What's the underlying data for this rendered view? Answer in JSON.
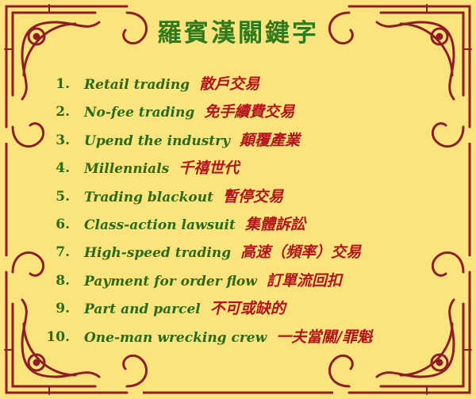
{
  "title": "羅賓漢關鍵字",
  "colors": {
    "background": "#fbe47d",
    "border": "#8f1d24",
    "title_green": "#2f7a1f",
    "term_green": "#2a6a18",
    "chinese_red": "#b3141b"
  },
  "items": [
    {
      "num": "1.",
      "en": "Retail trading",
      "zh": "散戶交易"
    },
    {
      "num": "2.",
      "en": "No-fee trading",
      "zh": "免手續費交易"
    },
    {
      "num": "3.",
      "en": "Upend the industry",
      "zh": "顛覆產業"
    },
    {
      "num": "4.",
      "en": "Millennials",
      "zh": "千禧世代"
    },
    {
      "num": "5.",
      "en": "Trading blackout",
      "zh": "暫停交易"
    },
    {
      "num": "6.",
      "en": "Class-action lawsuit",
      "zh": "集體訴訟"
    },
    {
      "num": "7.",
      "en": "High-speed trading",
      "zh": "高速（頻率）交易"
    },
    {
      "num": "8.",
      "en": "Payment for order flow",
      "zh": "訂單流回扣"
    },
    {
      "num": "9.",
      "en": "Part and parcel",
      "zh": "不可或缺的"
    },
    {
      "num": "10.",
      "en": "One-man wrecking crew",
      "zh": "一夫當關/罪魁"
    }
  ]
}
